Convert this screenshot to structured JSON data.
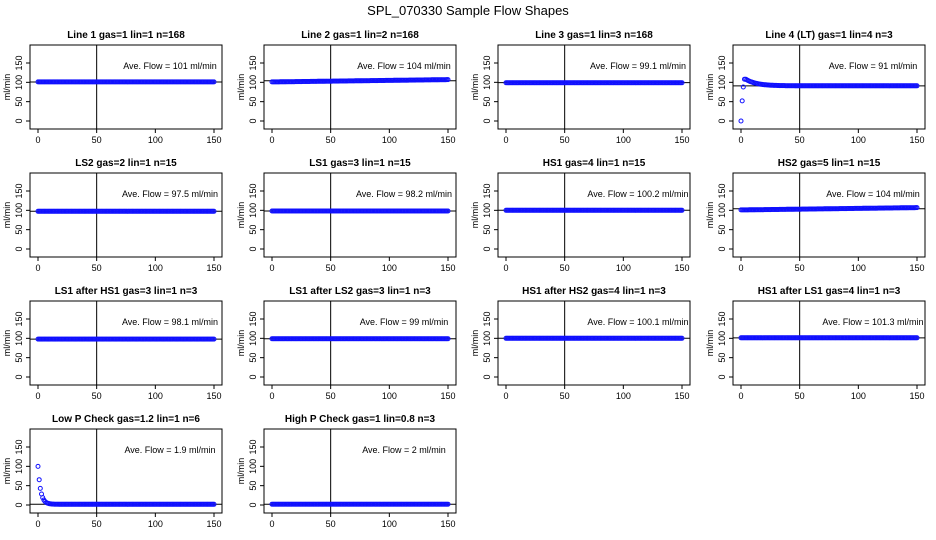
{
  "figure_title": "SPL_070330  Sample Flow Shapes",
  "colors": {
    "points": "#1010ff",
    "axis": "#000000",
    "background": "#ffffff"
  },
  "chart_data": [
    {
      "type": "scatter",
      "title": "Line 1 gas=1 lin=1 n=168",
      "ylabel": "ml/min",
      "xlim": [
        0,
        150
      ],
      "ylim": [
        0,
        150
      ],
      "xticks": [
        0,
        50,
        100,
        150
      ],
      "yticks": [
        0,
        50,
        100,
        150
      ],
      "annotation": "Ave. Flow =  101  ml/min",
      "vline_x": 50,
      "hline_y": 101,
      "mean": 101,
      "shape": "flat"
    },
    {
      "type": "scatter",
      "title": "Line 2 gas=1 lin=2 n=168",
      "ylabel": "ml/min",
      "xlim": [
        0,
        150
      ],
      "ylim": [
        0,
        150
      ],
      "xticks": [
        0,
        50,
        100,
        150
      ],
      "yticks": [
        0,
        50,
        100,
        150
      ],
      "annotation": "Ave. Flow =  104  ml/min",
      "vline_x": 50,
      "hline_y": 104,
      "mean": 104,
      "shape": "ramp_up"
    },
    {
      "type": "scatter",
      "title": "Line 3 gas=1 lin=3 n=168",
      "ylabel": "ml/min",
      "xlim": [
        0,
        150
      ],
      "ylim": [
        0,
        150
      ],
      "xticks": [
        0,
        50,
        100,
        150
      ],
      "yticks": [
        0,
        50,
        100,
        150
      ],
      "annotation": "Ave. Flow =  99.1  ml/min",
      "vline_x": 50,
      "hline_y": 99.1,
      "mean": 99.1,
      "shape": "flat"
    },
    {
      "type": "scatter",
      "title": "Line 4 (LT) gas=1 lin=4 n=3",
      "ylabel": "ml/min",
      "xlim": [
        0,
        150
      ],
      "ylim": [
        0,
        150
      ],
      "xticks": [
        0,
        50,
        100,
        150
      ],
      "yticks": [
        0,
        50,
        100,
        150
      ],
      "annotation": "Ave. Flow =  91  ml/min",
      "vline_x": 50,
      "hline_y": 91,
      "mean": 91,
      "shape": "rise_overshoot"
    },
    {
      "type": "scatter",
      "title": "LS2 gas=2 lin=1 n=15",
      "ylabel": "ml/min",
      "xlim": [
        0,
        150
      ],
      "ylim": [
        0,
        150
      ],
      "xticks": [
        0,
        50,
        100,
        150
      ],
      "yticks": [
        0,
        50,
        100,
        150
      ],
      "annotation": "Ave. Flow =  97.5  ml/min",
      "vline_x": 50,
      "hline_y": 97.5,
      "mean": 97.5,
      "shape": "flat"
    },
    {
      "type": "scatter",
      "title": "LS1 gas=3 lin=1 n=15",
      "ylabel": "ml/min",
      "xlim": [
        0,
        150
      ],
      "ylim": [
        0,
        150
      ],
      "xticks": [
        0,
        50,
        100,
        150
      ],
      "yticks": [
        0,
        50,
        100,
        150
      ],
      "annotation": "Ave. Flow =  98.2  ml/min",
      "vline_x": 50,
      "hline_y": 98.2,
      "mean": 98.2,
      "shape": "flat"
    },
    {
      "type": "scatter",
      "title": "HS1 gas=4 lin=1 n=15",
      "ylabel": "ml/min",
      "xlim": [
        0,
        150
      ],
      "ylim": [
        0,
        150
      ],
      "xticks": [
        0,
        50,
        100,
        150
      ],
      "yticks": [
        0,
        50,
        100,
        150
      ],
      "annotation": "Ave. Flow =  100.2  ml/min",
      "vline_x": 50,
      "hline_y": 100.2,
      "mean": 100.2,
      "shape": "flat"
    },
    {
      "type": "scatter",
      "title": "HS2 gas=5 lin=1 n=15",
      "ylabel": "ml/min",
      "xlim": [
        0,
        150
      ],
      "ylim": [
        0,
        150
      ],
      "xticks": [
        0,
        50,
        100,
        150
      ],
      "yticks": [
        0,
        50,
        100,
        150
      ],
      "annotation": "Ave. Flow =  104  ml/min",
      "vline_x": 50,
      "hline_y": 104,
      "mean": 104,
      "shape": "ramp_up"
    },
    {
      "type": "scatter",
      "title": "LS1 after HS1 gas=3 lin=1 n=3",
      "ylabel": "ml/min",
      "xlim": [
        0,
        150
      ],
      "ylim": [
        0,
        150
      ],
      "xticks": [
        0,
        50,
        100,
        150
      ],
      "yticks": [
        0,
        50,
        100,
        150
      ],
      "annotation": "Ave. Flow =  98.1  ml/min",
      "vline_x": 50,
      "hline_y": 98.1,
      "mean": 98.1,
      "shape": "flat"
    },
    {
      "type": "scatter",
      "title": "LS1 after LS2 gas=3 lin=1 n=3",
      "ylabel": "ml/min",
      "xlim": [
        0,
        150
      ],
      "ylim": [
        0,
        150
      ],
      "xticks": [
        0,
        50,
        100,
        150
      ],
      "yticks": [
        0,
        50,
        100,
        150
      ],
      "annotation": "Ave. Flow =  99  ml/min",
      "vline_x": 50,
      "hline_y": 99,
      "mean": 99,
      "shape": "flat"
    },
    {
      "type": "scatter",
      "title": "HS1 after HS2 gas=4 lin=1 n=3",
      "ylabel": "ml/min",
      "xlim": [
        0,
        150
      ],
      "ylim": [
        0,
        150
      ],
      "xticks": [
        0,
        50,
        100,
        150
      ],
      "yticks": [
        0,
        50,
        100,
        150
      ],
      "annotation": "Ave. Flow =  100.1  ml/min",
      "vline_x": 50,
      "hline_y": 100.1,
      "mean": 100.1,
      "shape": "flat"
    },
    {
      "type": "scatter",
      "title": "HS1 after LS1 gas=4 lin=1 n=3",
      "ylabel": "ml/min",
      "xlim": [
        0,
        150
      ],
      "ylim": [
        0,
        150
      ],
      "xticks": [
        0,
        50,
        100,
        150
      ],
      "yticks": [
        0,
        50,
        100,
        150
      ],
      "annotation": "Ave. Flow =  101.3  ml/min",
      "vline_x": 50,
      "hline_y": 101.3,
      "mean": 101.3,
      "shape": "flat"
    },
    {
      "type": "scatter",
      "title": "Low P Check gas=1.2 lin=1 n=6",
      "ylabel": "ml/min",
      "xlim": [
        0,
        150
      ],
      "ylim": [
        0,
        150
      ],
      "xticks": [
        0,
        50,
        100,
        150
      ],
      "yticks": [
        0,
        50,
        100,
        150
      ],
      "annotation": "Ave. Flow =  1.9  ml/min",
      "vline_x": 50,
      "hline_y": 1.9,
      "mean": 1.9,
      "shape": "decay"
    },
    {
      "type": "scatter",
      "title": "High P Check gas=1 lin=0.8 n=3",
      "ylabel": "ml/min",
      "xlim": [
        0,
        150
      ],
      "ylim": [
        0,
        150
      ],
      "xticks": [
        0,
        50,
        100,
        150
      ],
      "yticks": [
        0,
        50,
        100,
        150
      ],
      "annotation": "Ave. Flow =  2  ml/min",
      "vline_x": 50,
      "hline_y": 2,
      "mean": 2,
      "shape": "flat"
    }
  ]
}
